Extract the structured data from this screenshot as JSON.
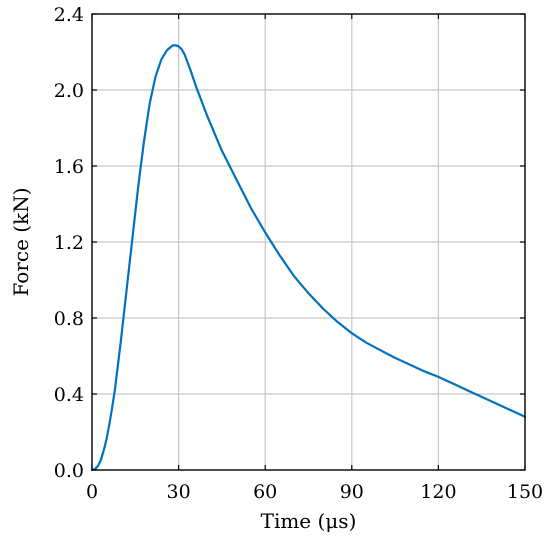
{
  "chart_data": {
    "type": "line",
    "title": "",
    "xlabel": "Time (μs)",
    "ylabel": "Force (kN)",
    "xlim": [
      0,
      150
    ],
    "ylim": [
      0,
      2.4
    ],
    "grid": true,
    "x_ticks": [
      0,
      30,
      60,
      90,
      120,
      150
    ],
    "x_tick_labels": [
      "0",
      "30",
      "60",
      "90",
      "120",
      "150"
    ],
    "y_ticks": [
      0,
      0.4,
      0.8,
      1.2,
      1.6,
      2.0,
      2.4
    ],
    "y_tick_labels": [
      "0.0",
      "0.4",
      "0.8",
      "1.2",
      "1.6",
      "2.0",
      "2.4"
    ],
    "series": [
      {
        "color": "#0072bd",
        "x": [
          0,
          1,
          2,
          3,
          4,
          5,
          6,
          7,
          8,
          10,
          12,
          14,
          16,
          18,
          20,
          22,
          24,
          26,
          28,
          29,
          30,
          31,
          32,
          34,
          36,
          40,
          45,
          50,
          55,
          60,
          65,
          70,
          75,
          80,
          85,
          90,
          95,
          100,
          105,
          110,
          115,
          120,
          125,
          130,
          135,
          140,
          145,
          150
        ],
        "y": [
          0.0,
          0.005,
          0.02,
          0.05,
          0.1,
          0.16,
          0.24,
          0.33,
          0.43,
          0.68,
          0.95,
          1.22,
          1.49,
          1.73,
          1.93,
          2.07,
          2.16,
          2.21,
          2.235,
          2.235,
          2.23,
          2.215,
          2.19,
          2.11,
          2.02,
          1.86,
          1.68,
          1.53,
          1.38,
          1.25,
          1.13,
          1.02,
          0.93,
          0.85,
          0.78,
          0.72,
          0.67,
          0.63,
          0.59,
          0.555,
          0.52,
          0.49,
          0.455,
          0.42,
          0.385,
          0.35,
          0.315,
          0.28
        ]
      }
    ]
  }
}
